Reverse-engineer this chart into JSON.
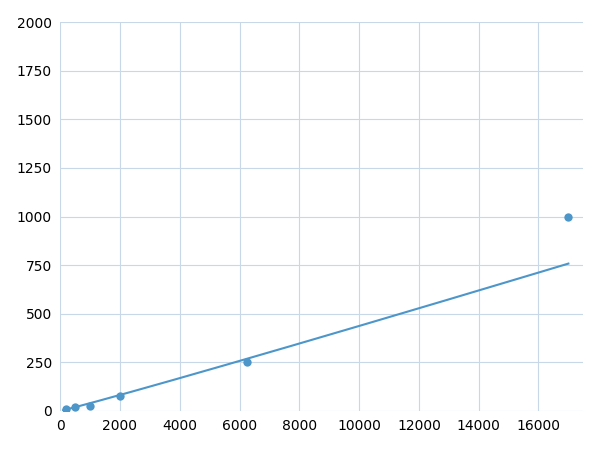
{
  "x": [
    188,
    500,
    1000,
    2000,
    6250,
    17000
  ],
  "y": [
    10,
    20,
    25,
    75,
    250,
    1000
  ],
  "marker_x": [
    188,
    500,
    1000,
    2000,
    6250,
    17000
  ],
  "marker_y": [
    10,
    20,
    25,
    75,
    250,
    1000
  ],
  "line_color": "#4d96c9",
  "marker_color": "#4d96c9",
  "marker_size": 6,
  "linewidth": 1.5,
  "xlim": [
    0,
    17500
  ],
  "ylim": [
    0,
    2000
  ],
  "xticks": [
    0,
    2000,
    4000,
    6000,
    8000,
    10000,
    12000,
    14000,
    16000
  ],
  "yticks": [
    0,
    250,
    500,
    750,
    1000,
    1250,
    1500,
    1750,
    2000
  ],
  "grid_color": "#c8d8e8",
  "background_color": "#ffffff",
  "tick_fontsize": 10,
  "figsize": [
    6.0,
    4.5
  ],
  "dpi": 100
}
